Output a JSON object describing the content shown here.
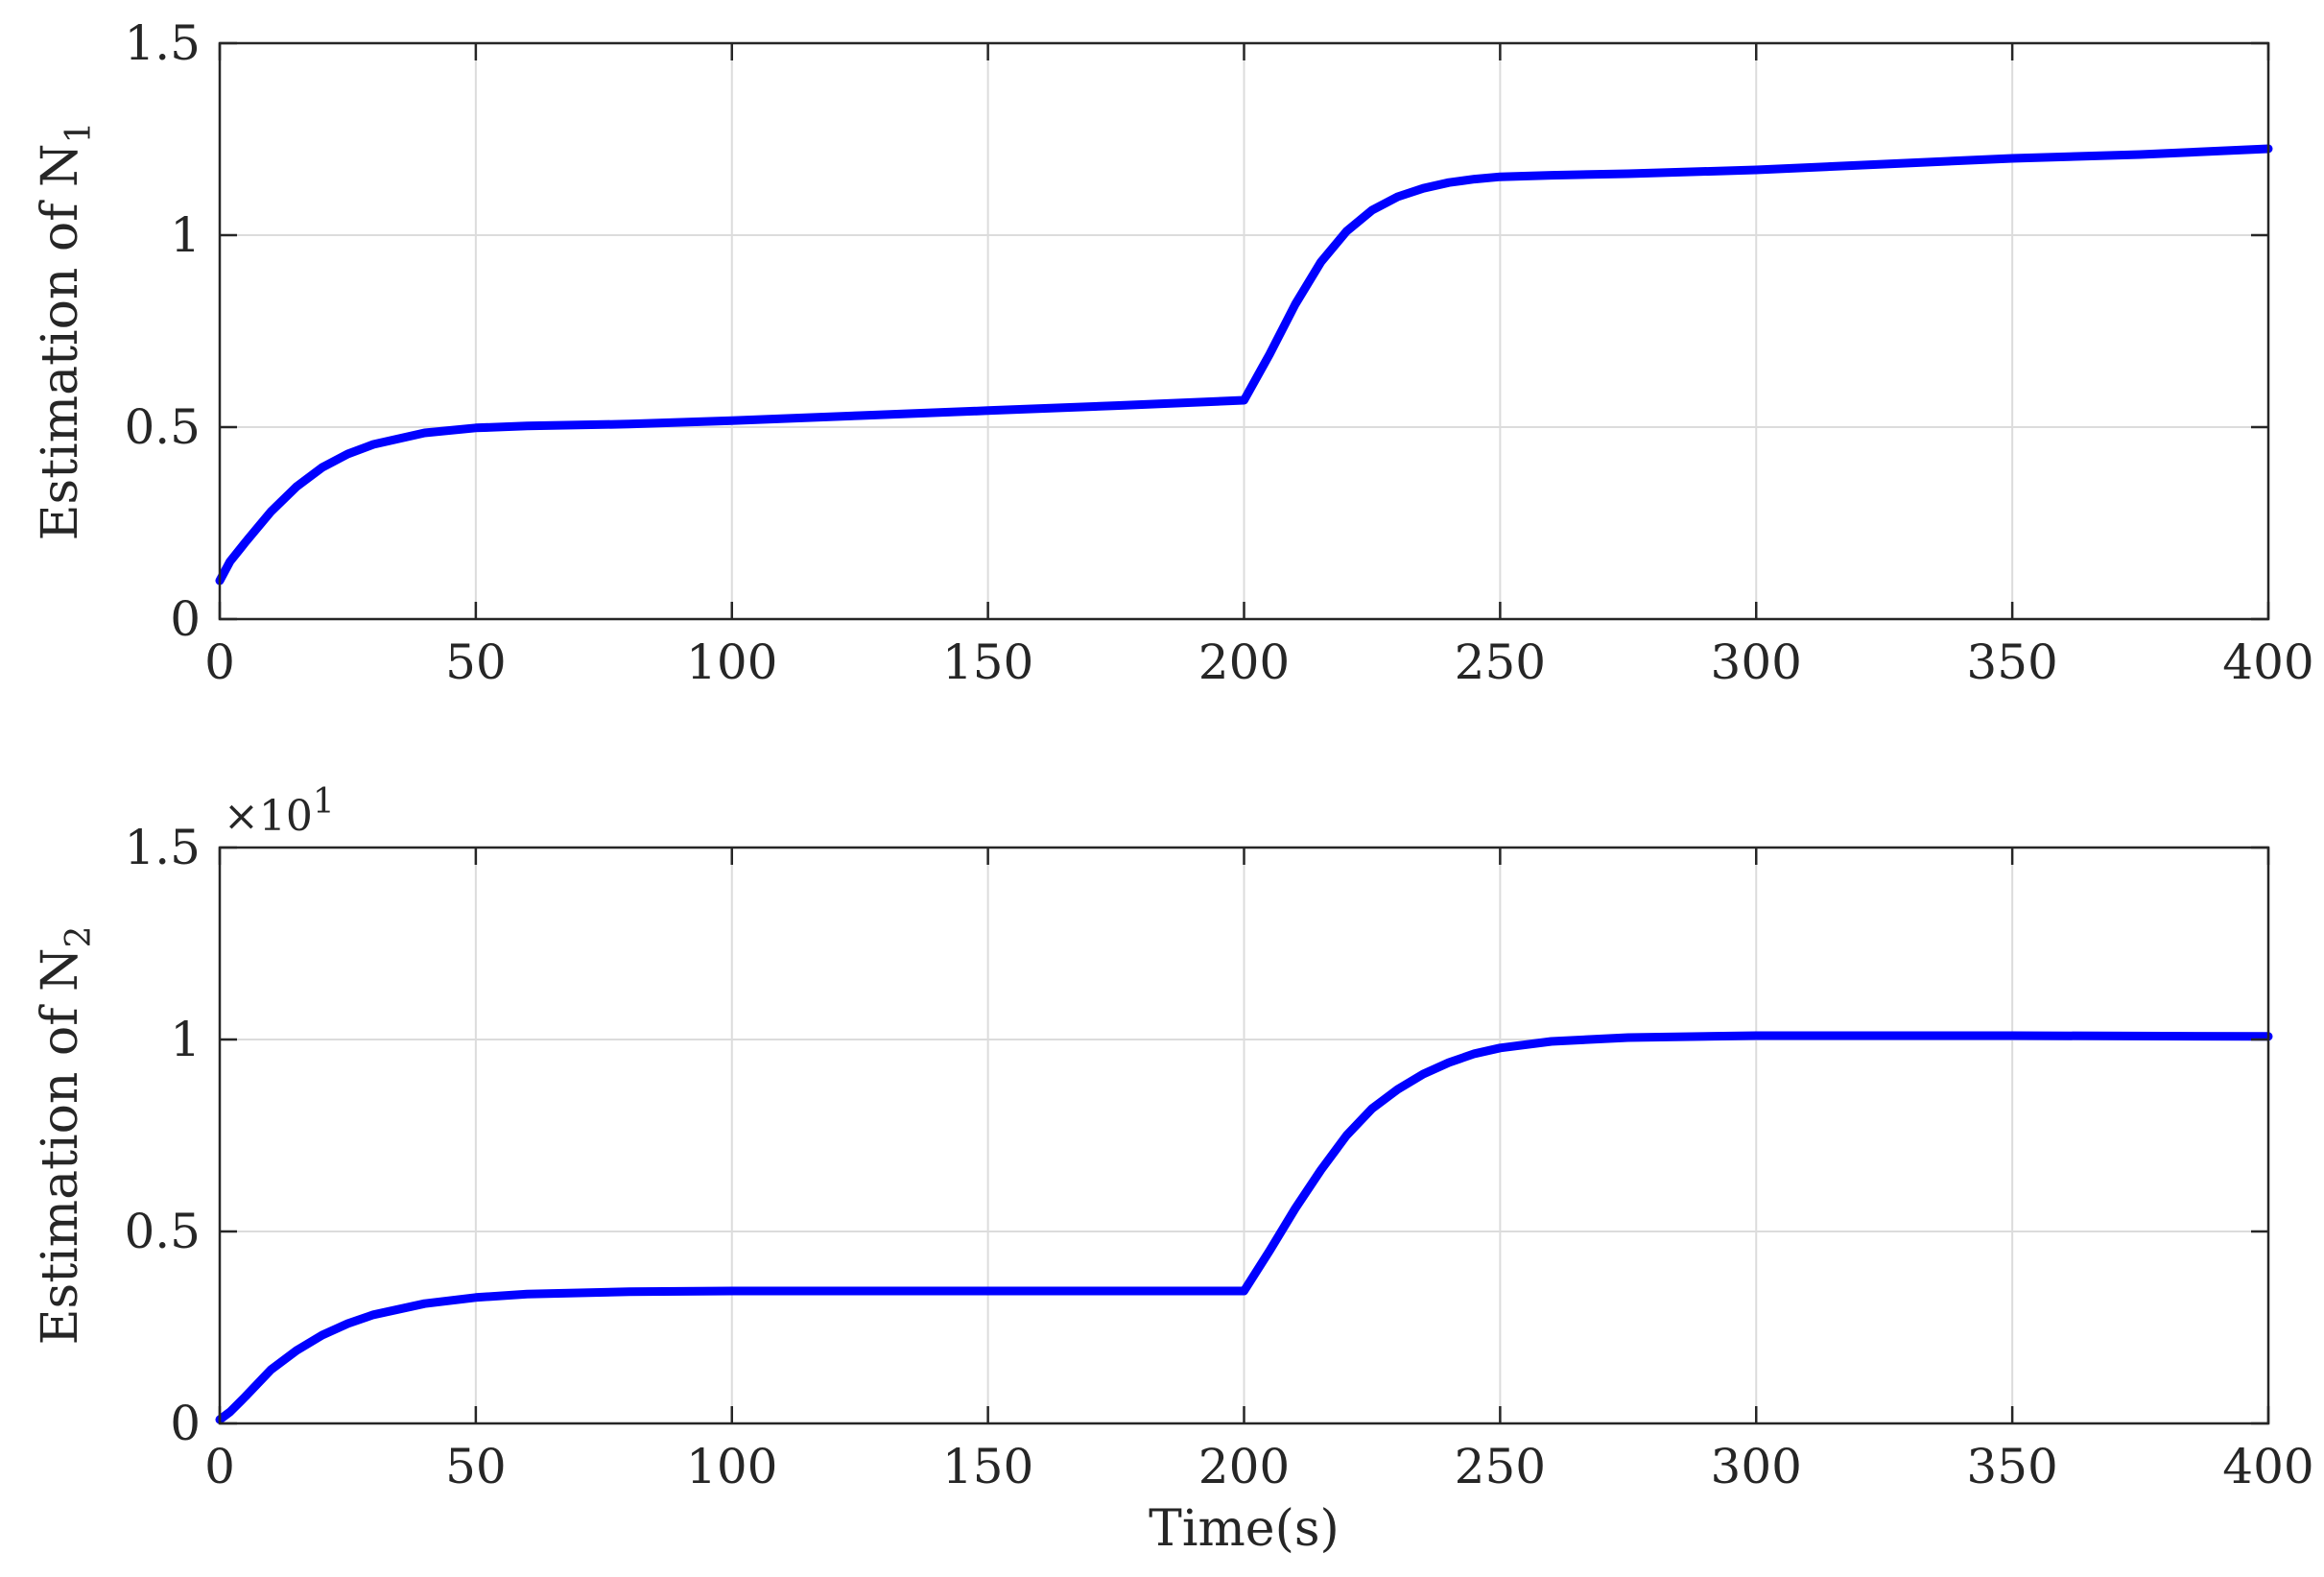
{
  "chart_data": [
    {
      "type": "line",
      "ylabel": "Estimation of N",
      "ylabel_subscript": "1",
      "xlabel": "",
      "xlim": [
        0,
        400
      ],
      "ylim": [
        0,
        1.5
      ],
      "grid": true,
      "color": "#0000ff",
      "xticks": [
        0,
        50,
        100,
        150,
        200,
        250,
        300,
        350,
        400
      ],
      "xtick_labels": [
        "0",
        "50",
        "100",
        "150",
        "200",
        "250",
        "300",
        "350",
        "400"
      ],
      "yticks": [
        0,
        0.5,
        1,
        1.5
      ],
      "ytick_labels": [
        "0",
        "0.5",
        "1",
        "1.5"
      ],
      "series": [
        {
          "x": [
            0,
            2,
            5,
            10,
            15,
            20,
            25,
            30,
            40,
            50,
            60,
            80,
            100,
            125,
            150,
            175,
            200,
            205,
            210,
            215,
            220,
            225,
            230,
            235,
            240,
            245,
            250,
            260,
            275,
            300,
            325,
            350,
            375,
            400
          ],
          "y": [
            0.1,
            0.15,
            0.2,
            0.28,
            0.345,
            0.395,
            0.43,
            0.455,
            0.485,
            0.498,
            0.503,
            0.508,
            0.517,
            0.53,
            0.543,
            0.556,
            0.57,
            0.69,
            0.82,
            0.93,
            1.01,
            1.065,
            1.1,
            1.122,
            1.137,
            1.146,
            1.152,
            1.156,
            1.16,
            1.17,
            1.185,
            1.2,
            1.21,
            1.225
          ]
        }
      ]
    },
    {
      "type": "line",
      "ylabel": "Estimation of N",
      "ylabel_subscript": "2",
      "xlabel": "Time(s)",
      "xlim": [
        0,
        400
      ],
      "ylim": [
        0,
        1.5
      ],
      "y_multiplier": "×10",
      "y_multiplier_exponent": "1",
      "grid": true,
      "color": "#0000ff",
      "xticks": [
        0,
        50,
        100,
        150,
        200,
        250,
        300,
        350,
        400
      ],
      "xtick_labels": [
        "0",
        "50",
        "100",
        "150",
        "200",
        "250",
        "300",
        "350",
        "400"
      ],
      "yticks": [
        0,
        0.5,
        1,
        1.5
      ],
      "ytick_labels": [
        "0",
        "0.5",
        "1",
        "1.5"
      ],
      "series": [
        {
          "x": [
            0,
            2,
            5,
            10,
            15,
            20,
            25,
            30,
            40,
            50,
            60,
            80,
            100,
            150,
            200,
            205,
            210,
            215,
            220,
            225,
            230,
            235,
            240,
            245,
            250,
            260,
            275,
            300,
            350,
            400
          ],
          "y": [
            0.01,
            0.03,
            0.07,
            0.14,
            0.19,
            0.23,
            0.26,
            0.283,
            0.312,
            0.328,
            0.337,
            0.343,
            0.345,
            0.345,
            0.345,
            0.45,
            0.56,
            0.66,
            0.75,
            0.82,
            0.87,
            0.91,
            0.94,
            0.963,
            0.978,
            0.995,
            1.005,
            1.01,
            1.01,
            1.008
          ]
        }
      ]
    }
  ]
}
